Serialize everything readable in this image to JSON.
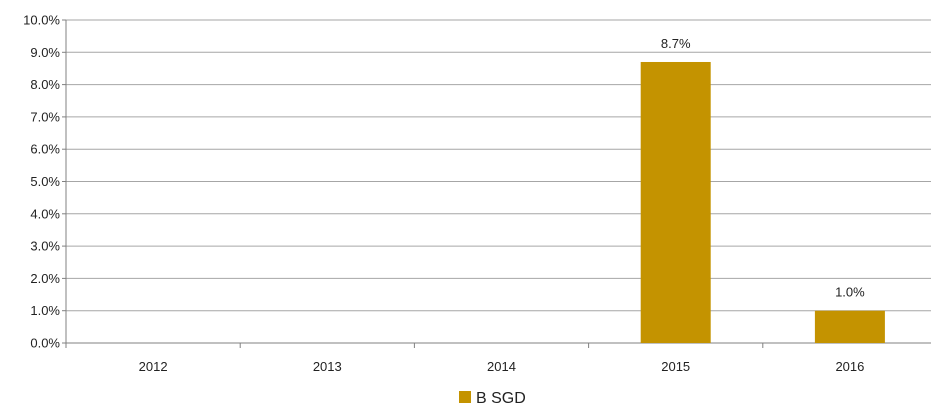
{
  "chart_data": {
    "type": "bar",
    "categories": [
      "2012",
      "2013",
      "2014",
      "2015",
      "2016"
    ],
    "series": [
      {
        "name": "B SGD",
        "values": [
          null,
          null,
          null,
          8.7,
          1.0
        ],
        "data_labels": [
          "",
          "",
          "",
          "8.7%",
          "1.0%"
        ],
        "color": "#c49300"
      }
    ],
    "ylim": [
      0,
      10
    ],
    "y_ticks": [
      {
        "value": 0,
        "label": "0.0%"
      },
      {
        "value": 1,
        "label": "1.0%"
      },
      {
        "value": 2,
        "label": "2.0%"
      },
      {
        "value": 3,
        "label": "3.0%"
      },
      {
        "value": 4,
        "label": "4.0%"
      },
      {
        "value": 5,
        "label": "5.0%"
      },
      {
        "value": 6,
        "label": "6.0%"
      },
      {
        "value": 7,
        "label": "7.0%"
      },
      {
        "value": 8,
        "label": "8.0%"
      },
      {
        "value": 9,
        "label": "9.0%"
      },
      {
        "value": 10,
        "label": "10.0%"
      }
    ],
    "grid": true,
    "legend_position": "bottom-center",
    "gridline_color": "#a6a6a6"
  }
}
